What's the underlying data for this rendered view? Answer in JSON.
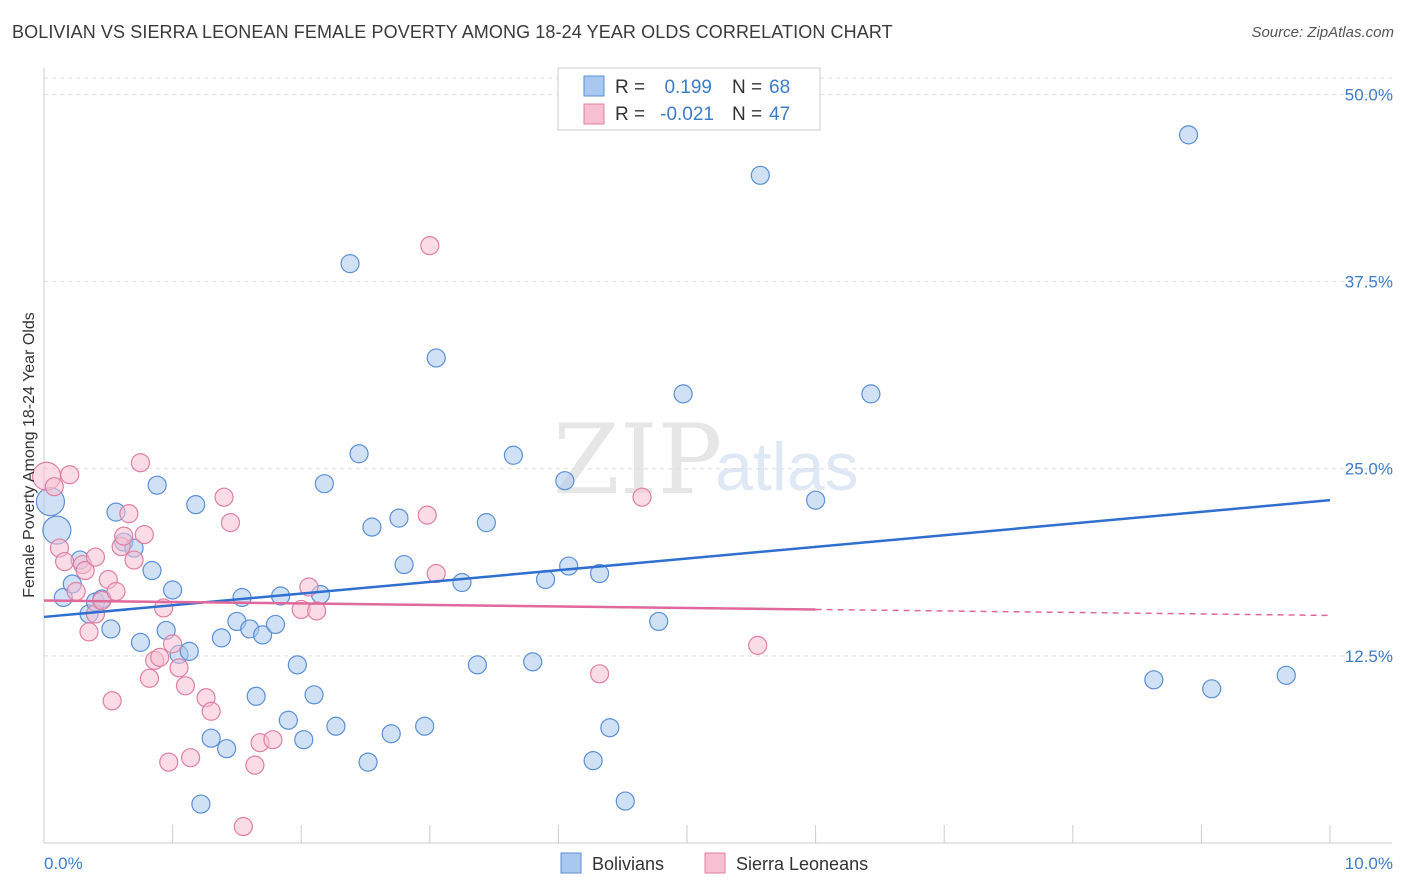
{
  "header": {
    "title": "BOLIVIAN VS SIERRA LEONEAN FEMALE POVERTY AMONG 18-24 YEAR OLDS CORRELATION CHART",
    "source": "Source: ZipAtlas.com"
  },
  "watermark": {
    "zip": "ZIP",
    "atlas": "atlas"
  },
  "legend": {
    "rows": [
      {
        "r_label": "R =",
        "r_value": "0.199",
        "n_label": "N =",
        "n_value": "68"
      },
      {
        "r_label": "R =",
        "r_value": "-0.021",
        "n_label": "N =",
        "n_value": "47"
      }
    ]
  },
  "bottom_legend": {
    "series1": "Bolivians",
    "series2": "Sierra Leoneans"
  },
  "colors": {
    "blue_fill": "#a9c8ef",
    "blue_stroke": "#5b8fd6",
    "blue_line": "#2f6fcf",
    "pink_fill": "#f7bfd2",
    "pink_stroke": "#e07fa3",
    "pink_line": "#e0689a",
    "tick_text": "#3d7cc9",
    "grid": "#dddddd"
  },
  "chart_data": {
    "type": "scatter",
    "title": "BOLIVIAN VS SIERRA LEONEAN FEMALE POVERTY AMONG 18-24 YEAR OLDS CORRELATION CHART",
    "xlabel": "",
    "ylabel": "Female Poverty Among 18-24 Year Olds",
    "xlim": [
      0,
      10
    ],
    "ylim": [
      0,
      51.5
    ],
    "x_tick_labels": [
      "0.0%",
      "10.0%"
    ],
    "y_ticks": [
      12.5,
      25.0,
      37.5,
      50.0
    ],
    "y_tick_labels": [
      "12.5%",
      "25.0%",
      "37.5%",
      "50.0%"
    ],
    "grid": true,
    "legend_position": "top-center",
    "series": [
      {
        "name": "Bolivians",
        "R": 0.199,
        "N": 68,
        "trend": {
          "x": [
            0,
            10
          ],
          "y": [
            15.1,
            22.9
          ],
          "dashed_from": null
        },
        "points": [
          {
            "x": 0.05,
            "y": 22.8,
            "big": true
          },
          {
            "x": 0.1,
            "y": 20.9,
            "big": true
          },
          {
            "x": 0.15,
            "y": 16.4
          },
          {
            "x": 0.22,
            "y": 17.3
          },
          {
            "x": 0.28,
            "y": 18.9
          },
          {
            "x": 0.35,
            "y": 15.3
          },
          {
            "x": 0.4,
            "y": 16.1
          },
          {
            "x": 0.45,
            "y": 16.3
          },
          {
            "x": 0.52,
            "y": 14.3
          },
          {
            "x": 0.56,
            "y": 22.1
          },
          {
            "x": 0.62,
            "y": 20.1
          },
          {
            "x": 0.7,
            "y": 19.7
          },
          {
            "x": 0.75,
            "y": 13.4
          },
          {
            "x": 0.84,
            "y": 18.2
          },
          {
            "x": 0.88,
            "y": 23.9
          },
          {
            "x": 0.95,
            "y": 14.2
          },
          {
            "x": 1.0,
            "y": 16.9
          },
          {
            "x": 1.05,
            "y": 12.6
          },
          {
            "x": 1.13,
            "y": 12.8
          },
          {
            "x": 1.18,
            "y": 22.6
          },
          {
            "x": 1.22,
            "y": 2.6
          },
          {
            "x": 1.3,
            "y": 7.0
          },
          {
            "x": 1.38,
            "y": 13.7
          },
          {
            "x": 1.42,
            "y": 6.3
          },
          {
            "x": 1.5,
            "y": 14.8
          },
          {
            "x": 1.54,
            "y": 16.4
          },
          {
            "x": 1.6,
            "y": 14.3
          },
          {
            "x": 1.65,
            "y": 9.8
          },
          {
            "x": 1.7,
            "y": 13.9
          },
          {
            "x": 1.8,
            "y": 14.6
          },
          {
            "x": 1.84,
            "y": 16.5
          },
          {
            "x": 1.9,
            "y": 8.2
          },
          {
            "x": 1.97,
            "y": 11.9
          },
          {
            "x": 2.02,
            "y": 6.9
          },
          {
            "x": 2.1,
            "y": 9.9
          },
          {
            "x": 2.15,
            "y": 16.6
          },
          {
            "x": 2.18,
            "y": 24.0
          },
          {
            "x": 2.27,
            "y": 7.8
          },
          {
            "x": 2.38,
            "y": 38.7
          },
          {
            "x": 2.45,
            "y": 26.0
          },
          {
            "x": 2.52,
            "y": 5.4
          },
          {
            "x": 2.55,
            "y": 21.1
          },
          {
            "x": 2.7,
            "y": 7.3
          },
          {
            "x": 2.76,
            "y": 21.7
          },
          {
            "x": 2.8,
            "y": 18.6
          },
          {
            "x": 2.96,
            "y": 7.8
          },
          {
            "x": 3.05,
            "y": 32.4
          },
          {
            "x": 3.25,
            "y": 17.4
          },
          {
            "x": 3.37,
            "y": 11.9
          },
          {
            "x": 3.44,
            "y": 21.4
          },
          {
            "x": 3.65,
            "y": 25.9
          },
          {
            "x": 3.8,
            "y": 12.1
          },
          {
            "x": 3.9,
            "y": 17.6
          },
          {
            "x": 4.05,
            "y": 24.2
          },
          {
            "x": 4.08,
            "y": 18.5
          },
          {
            "x": 4.27,
            "y": 5.5
          },
          {
            "x": 4.32,
            "y": 18.0
          },
          {
            "x": 4.4,
            "y": 7.7
          },
          {
            "x": 4.52,
            "y": 2.8
          },
          {
            "x": 4.78,
            "y": 14.8
          },
          {
            "x": 4.97,
            "y": 30.0
          },
          {
            "x": 5.57,
            "y": 44.6
          },
          {
            "x": 6.0,
            "y": 22.9
          },
          {
            "x": 6.43,
            "y": 30.0
          },
          {
            "x": 8.63,
            "y": 10.9
          },
          {
            "x": 8.9,
            "y": 47.3
          },
          {
            "x": 9.08,
            "y": 10.3
          },
          {
            "x": 9.66,
            "y": 11.2
          }
        ]
      },
      {
        "name": "Sierra Leoneans",
        "R": -0.021,
        "N": 47,
        "trend": {
          "x": [
            0,
            10
          ],
          "y": [
            16.2,
            15.2
          ],
          "dashed_from": 6.0
        },
        "points": [
          {
            "x": 0.02,
            "y": 24.5,
            "big": true
          },
          {
            "x": 0.08,
            "y": 23.8
          },
          {
            "x": 0.12,
            "y": 19.7
          },
          {
            "x": 0.16,
            "y": 18.8
          },
          {
            "x": 0.2,
            "y": 24.6
          },
          {
            "x": 0.25,
            "y": 16.8
          },
          {
            "x": 0.3,
            "y": 18.6
          },
          {
            "x": 0.32,
            "y": 18.2
          },
          {
            "x": 0.35,
            "y": 14.1
          },
          {
            "x": 0.4,
            "y": 15.3
          },
          {
            "x": 0.4,
            "y": 19.1
          },
          {
            "x": 0.45,
            "y": 16.2
          },
          {
            "x": 0.5,
            "y": 17.6
          },
          {
            "x": 0.53,
            "y": 9.5
          },
          {
            "x": 0.56,
            "y": 16.8
          },
          {
            "x": 0.6,
            "y": 19.8
          },
          {
            "x": 0.62,
            "y": 20.5
          },
          {
            "x": 0.66,
            "y": 22.0
          },
          {
            "x": 0.7,
            "y": 18.9
          },
          {
            "x": 0.75,
            "y": 25.4
          },
          {
            "x": 0.78,
            "y": 20.6
          },
          {
            "x": 0.82,
            "y": 11.0
          },
          {
            "x": 0.86,
            "y": 12.2
          },
          {
            "x": 0.9,
            "y": 12.4
          },
          {
            "x": 0.93,
            "y": 15.7
          },
          {
            "x": 0.97,
            "y": 5.4
          },
          {
            "x": 1.0,
            "y": 13.3
          },
          {
            "x": 1.05,
            "y": 11.7
          },
          {
            "x": 1.1,
            "y": 10.5
          },
          {
            "x": 1.14,
            "y": 5.7
          },
          {
            "x": 1.26,
            "y": 9.7
          },
          {
            "x": 1.3,
            "y": 8.8
          },
          {
            "x": 1.4,
            "y": 23.1
          },
          {
            "x": 1.45,
            "y": 21.4
          },
          {
            "x": 1.55,
            "y": 1.1
          },
          {
            "x": 1.64,
            "y": 5.2
          },
          {
            "x": 1.68,
            "y": 6.7
          },
          {
            "x": 1.78,
            "y": 6.9
          },
          {
            "x": 2.0,
            "y": 15.6
          },
          {
            "x": 2.06,
            "y": 17.1
          },
          {
            "x": 2.12,
            "y": 15.5
          },
          {
            "x": 3.0,
            "y": 39.9
          },
          {
            "x": 2.98,
            "y": 21.9
          },
          {
            "x": 3.05,
            "y": 18.0
          },
          {
            "x": 4.32,
            "y": 11.3
          },
          {
            "x": 4.65,
            "y": 23.1
          },
          {
            "x": 5.55,
            "y": 13.2
          }
        ]
      }
    ]
  }
}
